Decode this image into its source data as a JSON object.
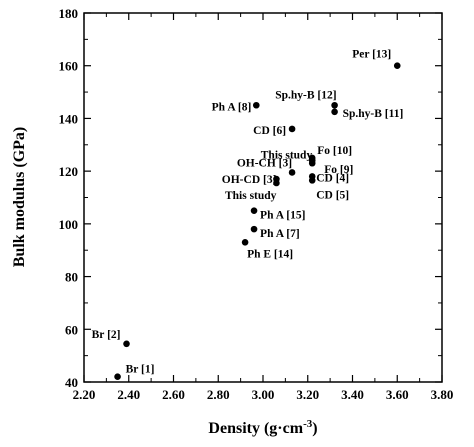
{
  "chart_data": {
    "type": "scatter",
    "title": "",
    "xlabel": "Density (g·cm",
    "xlabel_sup": "-3",
    "xlabel_close": ")",
    "ylabel": "Bulk modulus (GPa)",
    "xlim": [
      2.2,
      3.8
    ],
    "ylim": [
      40,
      180
    ],
    "xticks": [
      2.2,
      2.4,
      2.6,
      2.8,
      3.0,
      3.2,
      3.4,
      3.6,
      3.8
    ],
    "xtick_labels": [
      "2.20",
      "2.40",
      "2.60",
      "2.80",
      "3.00",
      "3.20",
      "3.40",
      "3.60",
      "3.80"
    ],
    "yticks": [
      40,
      60,
      80,
      100,
      120,
      140,
      160,
      180
    ],
    "ytick_labels": [
      "40",
      "60",
      "80",
      "100",
      "120",
      "140",
      "160",
      "180"
    ],
    "grid": false,
    "legend": "none",
    "marker_color": "#000000",
    "points": [
      {
        "x": 2.35,
        "y": 42,
        "label": "Br [1]",
        "anchor": "start",
        "dx": 8,
        "dy": -4
      },
      {
        "x": 2.39,
        "y": 54.5,
        "label": "Br [2]",
        "anchor": "end",
        "dx": -6,
        "dy": -6
      },
      {
        "x": 2.92,
        "y": 93,
        "label": "Ph E [14]",
        "anchor": "start",
        "dx": 2,
        "dy": 15
      },
      {
        "x": 2.96,
        "y": 98,
        "label": "Ph A [7]",
        "anchor": "start",
        "dx": 6,
        "dy": 8
      },
      {
        "x": 2.96,
        "y": 105,
        "label": "Ph A [15]",
        "anchor": "start",
        "dx": 6,
        "dy": 8
      },
      {
        "x": 2.97,
        "y": 145,
        "label": "Ph A [8]",
        "anchor": "end",
        "dx": -5,
        "dy": 5
      },
      {
        "x": 3.06,
        "y": 115.5,
        "label": "This study",
        "anchor": "end",
        "dx": 0,
        "dy": 16
      },
      {
        "x": 3.06,
        "y": 117,
        "label": "OH-CD [3]",
        "anchor": "end",
        "dx": 0,
        "dy": 4
      },
      {
        "x": 3.13,
        "y": 119.5,
        "label": "OH-CH [3]",
        "anchor": "end",
        "dx": 0,
        "dy": -6
      },
      {
        "x": 3.13,
        "y": 136,
        "label": "CD [6]",
        "anchor": "end",
        "dx": -6,
        "dy": 5
      },
      {
        "x": 3.22,
        "y": 124,
        "label": "This study",
        "anchor": "end",
        "dx": 0,
        "dy": -2
      },
      {
        "x": 3.22,
        "y": 125,
        "label": "Fo [10]",
        "anchor": "start",
        "dx": 5,
        "dy": -4
      },
      {
        "x": 3.22,
        "y": 123,
        "label": "Fo [9]",
        "anchor": "start",
        "dx": 12,
        "dy": 10
      },
      {
        "x": 3.22,
        "y": 118,
        "label": "CD [4]",
        "anchor": "start",
        "dx": 4,
        "dy": 5
      },
      {
        "x": 3.22,
        "y": 116.5,
        "label": "CD [5]",
        "anchor": "start",
        "dx": 4,
        "dy": 18
      },
      {
        "x": 3.32,
        "y": 145,
        "label": "Sp.hy-B [12]",
        "anchor": "end",
        "dx": 2,
        "dy": -7
      },
      {
        "x": 3.32,
        "y": 142.5,
        "label": "Sp.hy-B [11]",
        "anchor": "start",
        "dx": 8,
        "dy": 5
      },
      {
        "x": 3.6,
        "y": 160,
        "label": "Per [13]",
        "anchor": "end",
        "dx": -6,
        "dy": -8
      }
    ]
  }
}
